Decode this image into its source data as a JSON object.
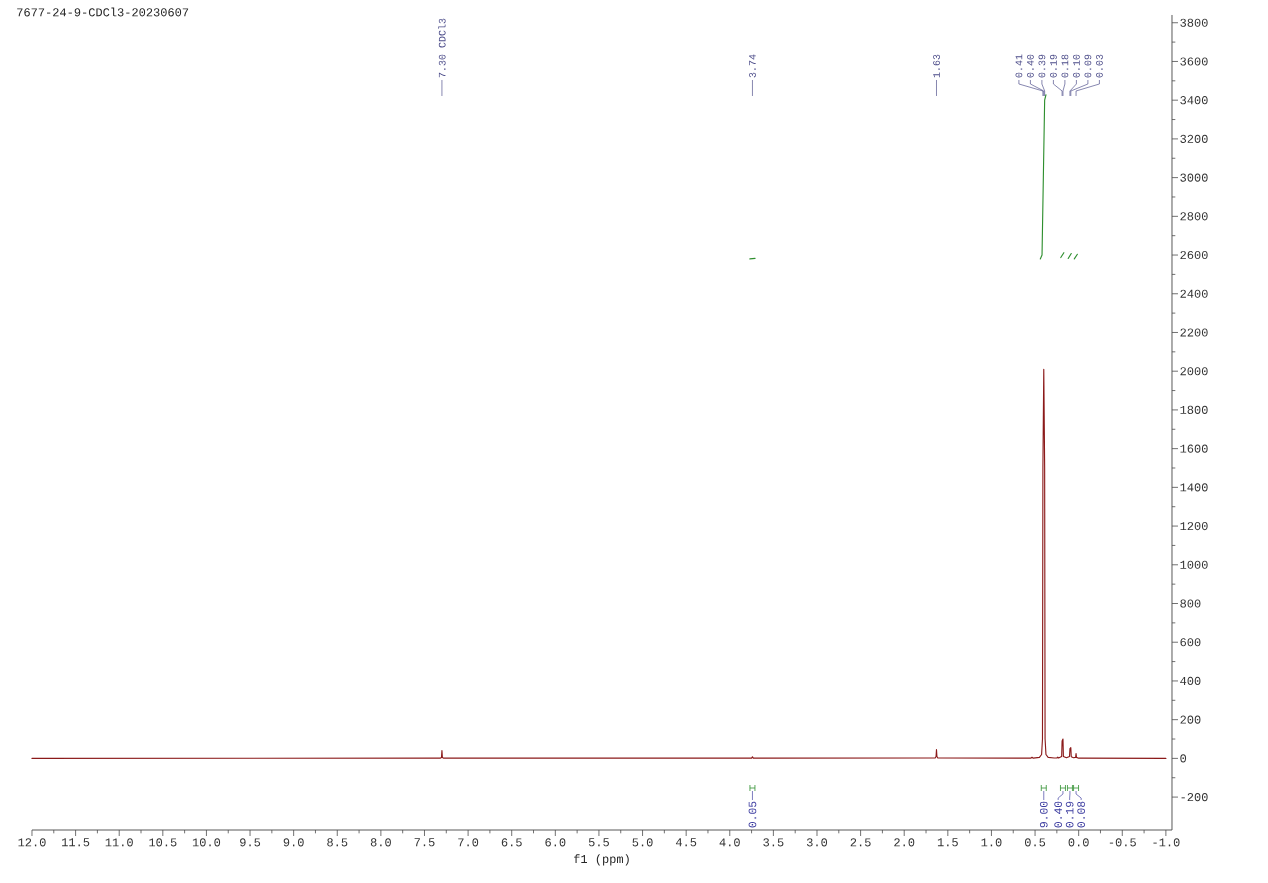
{
  "chart_data": {
    "type": "line",
    "title": "7677-24-9-CDCl3-20230607",
    "xlabel": "f1 (ppm)",
    "xlim": [
      12.0,
      -1.07
    ],
    "ylim": [
      -370,
      3840
    ],
    "xticks": [
      {
        "value": 12,
        "label": "12.0"
      },
      11.5,
      {
        "value": 11,
        "label": "11.0"
      },
      10.5,
      {
        "value": 10,
        "label": "10.0"
      },
      9.5,
      {
        "value": 9,
        "label": "9.0"
      },
      8.5,
      {
        "value": 8,
        "label": "8.0"
      },
      7.5,
      {
        "value": 7,
        "label": "7.0"
      },
      6.5,
      {
        "value": 6,
        "label": "6.0"
      },
      5.5,
      {
        "value": 5,
        "label": "5.0"
      },
      4.5,
      {
        "value": 4,
        "label": "4.0"
      },
      3.5,
      {
        "value": 3,
        "label": "3.0"
      },
      2.5,
      {
        "value": 2,
        "label": "2.0"
      },
      1.5,
      {
        "value": 1,
        "label": "1.0"
      },
      0.5,
      {
        "value": 0,
        "label": "0.0"
      },
      -0.5,
      {
        "value": -1,
        "label": "-1.0"
      }
    ],
    "yticks": [
      -200,
      0,
      200,
      400,
      600,
      800,
      1000,
      1200,
      1400,
      1600,
      1800,
      2000,
      2200,
      2400,
      2600,
      2800,
      3000,
      3200,
      3400,
      3600,
      3800
    ],
    "series": [
      {
        "color": "#8b1a1a",
        "x": [
          12.0,
          7.32,
          7.305,
          7.3,
          7.295,
          7.28,
          3.75,
          3.74,
          3.73,
          1.645,
          1.635,
          1.63,
          1.625,
          1.615,
          0.55,
          0.535,
          0.52,
          0.45,
          0.425,
          0.415,
          0.41,
          0.4,
          0.39,
          0.385,
          0.375,
          0.35,
          0.28,
          0.25,
          0.24,
          0.23,
          0.195,
          0.19,
          0.18,
          0.175,
          0.14,
          0.105,
          0.1,
          0.09,
          0.085,
          0.06,
          0.035,
          0.03,
          0.025,
          0.0,
          -1.0
        ],
        "values": [
          0,
          1,
          5,
          40,
          5,
          1,
          1,
          8,
          1,
          2,
          10,
          45,
          10,
          2,
          1,
          6,
          1,
          5,
          20,
          100,
          1500,
          2010,
          1500,
          100,
          20,
          5,
          2,
          2,
          6,
          2,
          10,
          90,
          100,
          10,
          3,
          10,
          50,
          55,
          8,
          3,
          5,
          25,
          5,
          1,
          0
        ]
      },
      {
        "color": "#2f8f2f",
        "x": [
          3.77,
          3.71
        ],
        "values": [
          2580,
          2583
        ]
      },
      {
        "color": "#2f8f2f",
        "x": [
          0.44,
          0.42,
          0.405,
          0.39,
          0.375
        ],
        "values": [
          2580,
          2600,
          3000,
          3400,
          3428
        ]
      },
      {
        "color": "#2f8f2f",
        "x": [
          0.205,
          0.17
        ],
        "values": [
          2587,
          2612
        ]
      },
      {
        "color": "#2f8f2f",
        "x": [
          0.12,
          0.085
        ],
        "values": [
          2582,
          2608
        ]
      },
      {
        "color": "#2f8f2f",
        "x": [
          0.05,
          0.015
        ],
        "values": [
          2580,
          2604
        ]
      }
    ],
    "annotations": [
      {
        "text": "7.30 CDCl3",
        "x": 7.3
      },
      {
        "text": "3.74",
        "x": 3.74
      },
      {
        "text": "1.63",
        "x": 1.63
      },
      {
        "text": "0.41",
        "x": 0.41
      },
      {
        "text": "0.40",
        "x": 0.4
      },
      {
        "text": "0.39",
        "x": 0.39
      },
      {
        "text": "0.19",
        "x": 0.19
      },
      {
        "text": "0.18",
        "x": 0.18
      },
      {
        "text": "0.10",
        "x": 0.1
      },
      {
        "text": "0.09",
        "x": 0.09
      },
      {
        "text": "0.03",
        "x": 0.03
      },
      {
        "text": "0.05",
        "x": 3.74
      },
      {
        "text": "9.00",
        "x": 0.4
      },
      {
        "text": "0.40",
        "x": 0.18
      },
      {
        "text": "0.19",
        "x": 0.1
      },
      {
        "text": "0.08",
        "x": 0.03
      }
    ]
  }
}
